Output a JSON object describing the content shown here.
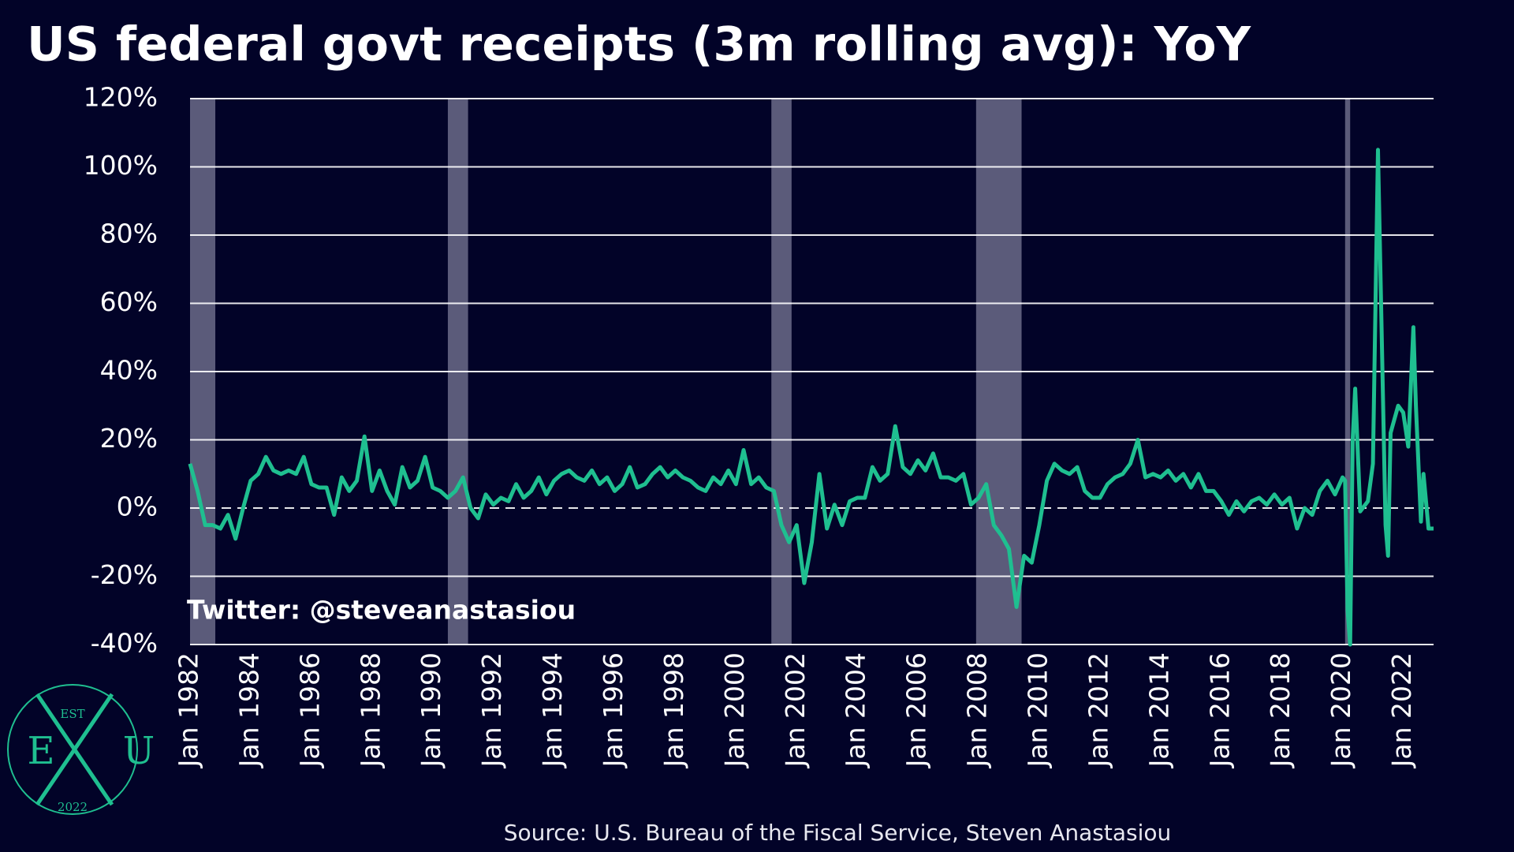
{
  "chart_data": {
    "type": "line",
    "title": "US federal govt receipts (3m rolling avg): YoY",
    "source": "Source: U.S. Bureau of the Fiscal Service, Steven Anastasiou",
    "annotation": "Twitter: @steveanastasiou",
    "logo": {
      "top": "EST",
      "left": "E",
      "right": "U",
      "bottom": "2022"
    },
    "background": "#020328",
    "grid": true,
    "zero_line": "dashed",
    "recession_color": "#5b5b7a",
    "recessions": [
      [
        "1982-01",
        "1982-11"
      ],
      [
        "1990-07",
        "1991-03"
      ],
      [
        "2001-03",
        "2001-11"
      ],
      [
        "2007-12",
        "2009-06"
      ],
      [
        "2020-02",
        "2020-04"
      ]
    ],
    "xlim": [
      "1982-01",
      "2023-01"
    ],
    "xticks": [
      {
        "value": "1982-01",
        "label": "Jan 1982"
      },
      {
        "value": "1984-01",
        "label": "Jan 1984"
      },
      {
        "value": "1986-01",
        "label": "Jan 1986"
      },
      {
        "value": "1988-01",
        "label": "Jan 1988"
      },
      {
        "value": "1990-01",
        "label": "Jan 1990"
      },
      {
        "value": "1992-01",
        "label": "Jan 1992"
      },
      {
        "value": "1994-01",
        "label": "Jan 1994"
      },
      {
        "value": "1996-01",
        "label": "Jan 1996"
      },
      {
        "value": "1998-01",
        "label": "Jan 1998"
      },
      {
        "value": "2000-01",
        "label": "Jan 2000"
      },
      {
        "value": "2002-01",
        "label": "Jan 2002"
      },
      {
        "value": "2004-01",
        "label": "Jan 2004"
      },
      {
        "value": "2006-01",
        "label": "Jan 2006"
      },
      {
        "value": "2008-01",
        "label": "Jan 2008"
      },
      {
        "value": "2010-01",
        "label": "Jan 2010"
      },
      {
        "value": "2012-01",
        "label": "Jan 2012"
      },
      {
        "value": "2014-01",
        "label": "Jan 2014"
      },
      {
        "value": "2016-01",
        "label": "Jan 2016"
      },
      {
        "value": "2018-01",
        "label": "Jan 2018"
      },
      {
        "value": "2020-01",
        "label": "Jan 2020"
      },
      {
        "value": "2022-01",
        "label": "Jan 2022"
      }
    ],
    "ylim": [
      -40,
      120
    ],
    "yticks": [
      {
        "value": -40,
        "label": "-40%"
      },
      {
        "value": -20,
        "label": "-20%"
      },
      {
        "value": 0,
        "label": "0%"
      },
      {
        "value": 20,
        "label": "20%"
      },
      {
        "value": 40,
        "label": "40%"
      },
      {
        "value": 60,
        "label": "60%"
      },
      {
        "value": 80,
        "label": "80%"
      },
      {
        "value": 100,
        "label": "100%"
      },
      {
        "value": 120,
        "label": "120%"
      }
    ],
    "x": [
      "1982-01",
      "1982-04",
      "1982-07",
      "1982-10",
      "1983-01",
      "1983-04",
      "1983-07",
      "1983-10",
      "1984-01",
      "1984-04",
      "1984-07",
      "1984-10",
      "1985-01",
      "1985-04",
      "1985-07",
      "1985-10",
      "1986-01",
      "1986-04",
      "1986-07",
      "1986-10",
      "1987-01",
      "1987-04",
      "1987-07",
      "1987-10",
      "1988-01",
      "1988-04",
      "1988-07",
      "1988-10",
      "1989-01",
      "1989-04",
      "1989-07",
      "1989-10",
      "1990-01",
      "1990-04",
      "1990-07",
      "1990-10",
      "1991-01",
      "1991-04",
      "1991-07",
      "1991-10",
      "1992-01",
      "1992-04",
      "1992-07",
      "1992-10",
      "1993-01",
      "1993-04",
      "1993-07",
      "1993-10",
      "1994-01",
      "1994-04",
      "1994-07",
      "1994-10",
      "1995-01",
      "1995-04",
      "1995-07",
      "1995-10",
      "1996-01",
      "1996-04",
      "1996-07",
      "1996-10",
      "1997-01",
      "1997-04",
      "1997-07",
      "1997-10",
      "1998-01",
      "1998-04",
      "1998-07",
      "1998-10",
      "1999-01",
      "1999-04",
      "1999-07",
      "1999-10",
      "2000-01",
      "2000-04",
      "2000-07",
      "2000-10",
      "2001-01",
      "2001-04",
      "2001-07",
      "2001-10",
      "2002-01",
      "2002-04",
      "2002-07",
      "2002-10",
      "2003-01",
      "2003-04",
      "2003-07",
      "2003-10",
      "2004-01",
      "2004-04",
      "2004-07",
      "2004-10",
      "2005-01",
      "2005-04",
      "2005-07",
      "2005-10",
      "2006-01",
      "2006-04",
      "2006-07",
      "2006-10",
      "2007-01",
      "2007-04",
      "2007-07",
      "2007-10",
      "2008-01",
      "2008-04",
      "2008-07",
      "2008-10",
      "2009-01",
      "2009-04",
      "2009-07",
      "2009-10",
      "2010-01",
      "2010-04",
      "2010-07",
      "2010-10",
      "2011-01",
      "2011-04",
      "2011-07",
      "2011-10",
      "2012-01",
      "2012-04",
      "2012-07",
      "2012-10",
      "2013-01",
      "2013-04",
      "2013-07",
      "2013-10",
      "2014-01",
      "2014-04",
      "2014-07",
      "2014-10",
      "2015-01",
      "2015-04",
      "2015-07",
      "2015-10",
      "2016-01",
      "2016-04",
      "2016-07",
      "2016-10",
      "2017-01",
      "2017-04",
      "2017-07",
      "2017-10",
      "2018-01",
      "2018-04",
      "2018-07",
      "2018-10",
      "2019-01",
      "2019-04",
      "2019-07",
      "2019-10",
      "2020-01",
      "2020-02",
      "2020-03",
      "2020-04",
      "2020-05",
      "2020-06",
      "2020-08",
      "2020-11",
      "2021-01",
      "2021-03",
      "2021-06",
      "2021-07",
      "2021-08",
      "2021-11",
      "2022-01",
      "2022-03",
      "2022-05",
      "2022-06",
      "2022-08",
      "2022-09",
      "2022-11",
      "2023-01"
    ],
    "series": [
      {
        "name": "YoY",
        "color": "#1fbf90",
        "values": [
          13,
          5,
          -5,
          -5,
          -6,
          -2,
          -9,
          0,
          8,
          10,
          15,
          11,
          10,
          11,
          10,
          15,
          7,
          6,
          6,
          -2,
          9,
          5,
          8,
          21,
          5,
          11,
          5,
          1,
          12,
          6,
          8,
          15,
          6,
          5,
          3,
          5,
          9,
          0,
          -3,
          4,
          1,
          3,
          2,
          7,
          3,
          5,
          9,
          4,
          8,
          10,
          11,
          9,
          8,
          11,
          7,
          9,
          5,
          7,
          12,
          6,
          7,
          10,
          12,
          9,
          11,
          9,
          8,
          6,
          5,
          9,
          7,
          11,
          7,
          17,
          7,
          9,
          6,
          5,
          -5,
          -10,
          -5,
          -22,
          -10,
          10,
          -6,
          1,
          -5,
          2,
          3,
          3,
          12,
          8,
          10,
          24,
          12,
          10,
          14,
          11,
          16,
          9,
          9,
          8,
          10,
          1,
          3,
          7,
          -5,
          -8,
          -12,
          -29,
          -14,
          -16,
          -5,
          8,
          13,
          11,
          10,
          12,
          5,
          3,
          3,
          7,
          9,
          10,
          13,
          20,
          9,
          10,
          9,
          11,
          8,
          10,
          6,
          10,
          5,
          5,
          2,
          -2,
          2,
          -1,
          2,
          3,
          1,
          4,
          1,
          3,
          -6,
          0,
          -2,
          5,
          8,
          4,
          9,
          8,
          -30,
          -40,
          20,
          35,
          -1,
          2,
          13,
          105,
          -5,
          -14,
          22,
          30,
          28,
          18,
          53,
          30,
          -4,
          10,
          -6,
          -6
        ]
      }
    ]
  }
}
